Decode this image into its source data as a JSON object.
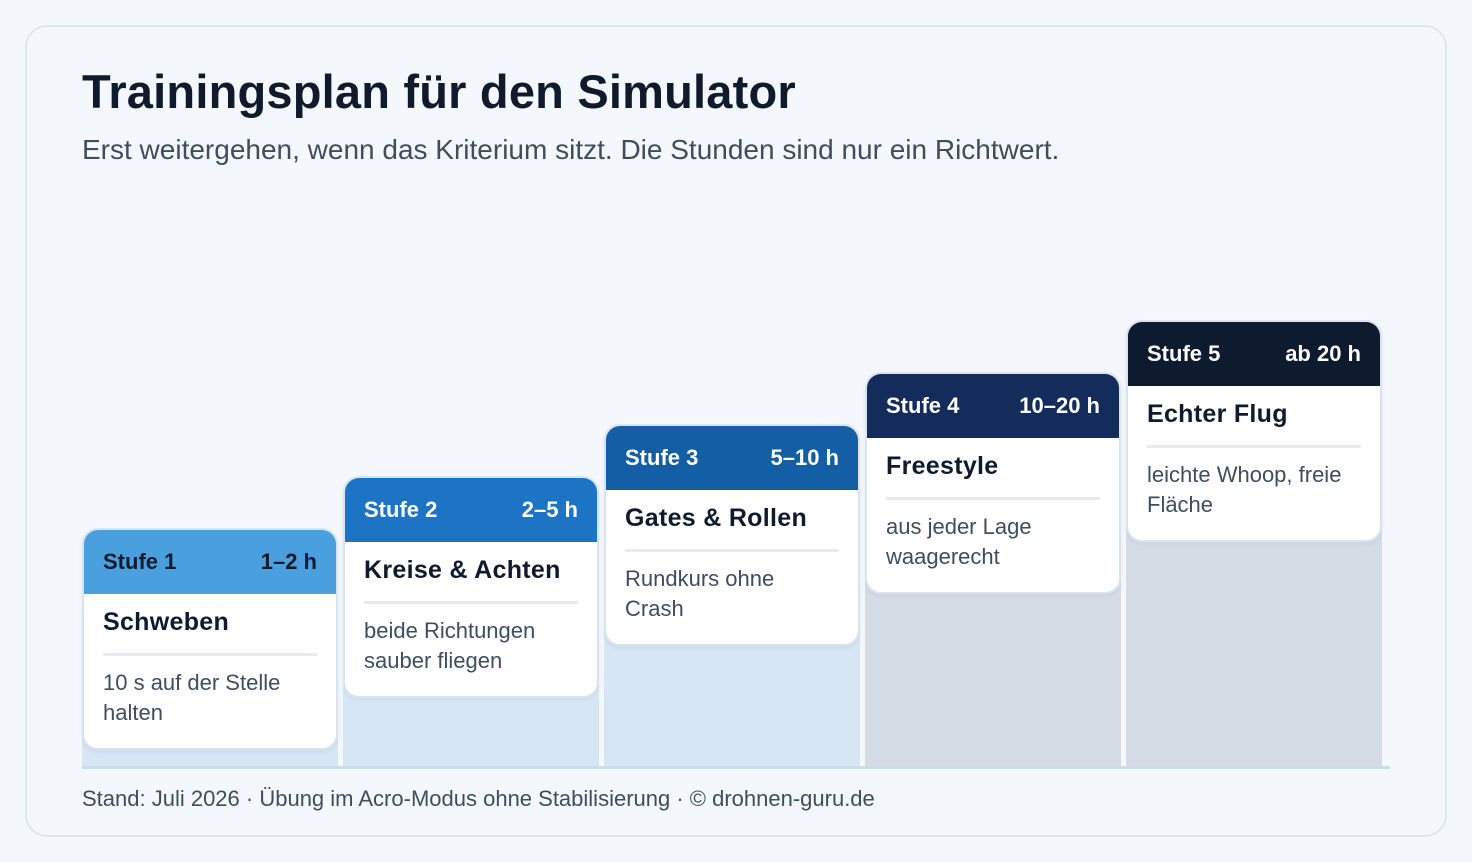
{
  "title": "Trainingsplan für den Simulator",
  "subtitle": "Erst weitergehen, wenn das Kriterium sitzt. Die Stunden sind nur ein Richtwert.",
  "steps": [
    {
      "label": "Stufe 1",
      "hours": "1–2 h",
      "name": "Schweben",
      "criterion": "10 s auf der Stelle halten",
      "head_color": "#4a9fdf",
      "head_text_color": "#0f1b2d",
      "column_color": "#d6e6f5"
    },
    {
      "label": "Stufe 2",
      "hours": "2–5 h",
      "name": "Kreise & Achten",
      "criterion": "beide Richtungen sauber fliegen",
      "head_color": "#1d73c4",
      "head_text_color": "#ffffff",
      "column_color": "#d6e6f5"
    },
    {
      "label": "Stufe 3",
      "hours": "5–10 h",
      "name": "Gates & Rollen",
      "criterion": "Rundkurs ohne Crash",
      "head_color": "#145ea6",
      "head_text_color": "#ffffff",
      "column_color": "#d6e6f5"
    },
    {
      "label": "Stufe 4",
      "hours": "10–20 h",
      "name": "Freestyle",
      "criterion": "aus jeder Lage waagerecht",
      "head_color": "#142c5c",
      "head_text_color": "#ffffff",
      "column_color": "#d6dce6"
    },
    {
      "label": "Stufe 5",
      "hours": "ab 20 h",
      "name": "Echter Flug",
      "criterion": "leichte Whoop, freie Fläche",
      "head_color": "#0e1a2e",
      "head_text_color": "#ffffff",
      "column_color": "#d6dce6"
    }
  ],
  "footer": "Stand: Juli 2026 · Übung im Acro-Modus ohne Stabilisierung · © drohnen-guru.de"
}
